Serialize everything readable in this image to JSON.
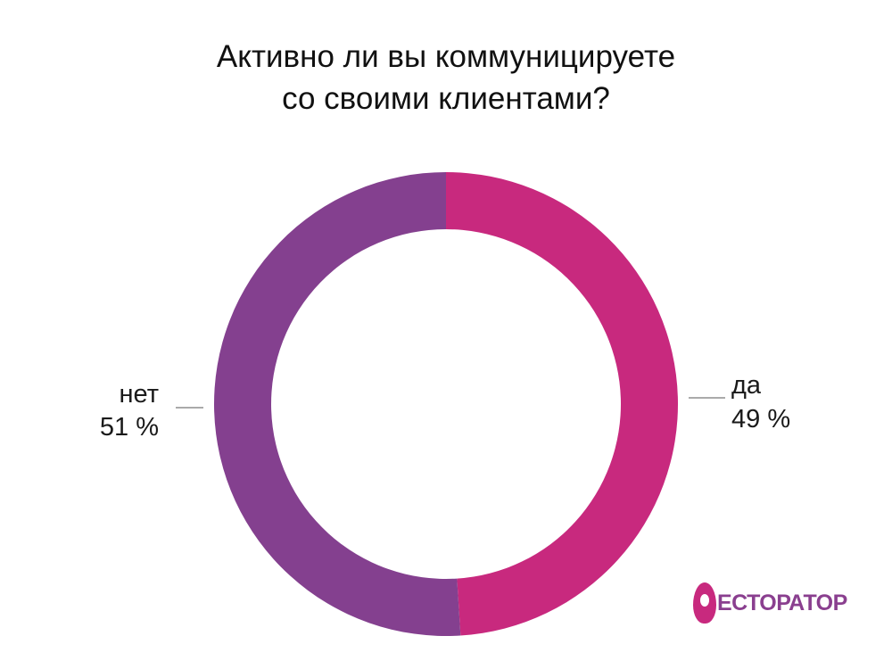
{
  "title_lines": [
    "Активно ли вы коммуницируете",
    "со своими клиентами?"
  ],
  "chart_data": {
    "type": "pie",
    "variant": "donut",
    "title": "Активно ли вы коммуницируете со своими клиентами?",
    "categories": [
      "да",
      "нет"
    ],
    "values": [
      49,
      51
    ],
    "unit": "%",
    "value_labels": [
      "49 %",
      "51 %"
    ],
    "colors": [
      "#c8297e",
      "#84408f"
    ],
    "legend": "none (labels beside slices)"
  },
  "logo": {
    "text": "ЕСТОРАТОР",
    "wordmark": "РЕСТОРАТОР",
    "color": "#8a3f8f",
    "accent": "#c8297e"
  }
}
